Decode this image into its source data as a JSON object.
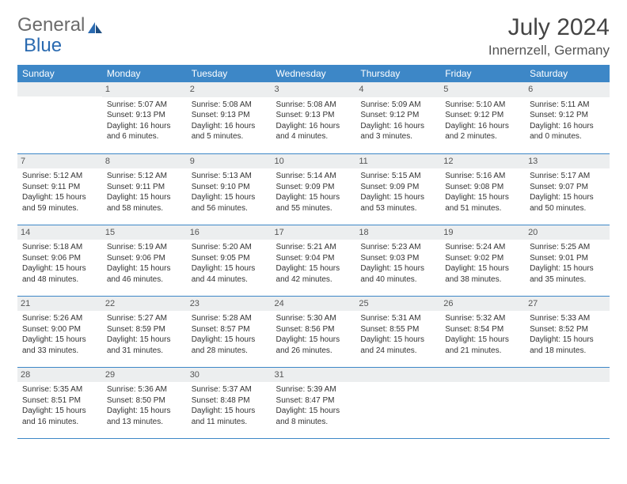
{
  "logo": {
    "text1": "General",
    "text2": "Blue"
  },
  "title": "July 2024",
  "location": "Innernzell, Germany",
  "table": {
    "header_bg": "#3d87c7",
    "header_fg": "#ffffff",
    "daybar_bg": "#eceeef",
    "border_color": "#3d87c7",
    "font_size_header": 12,
    "font_size_body": 10,
    "columns": [
      "Sunday",
      "Monday",
      "Tuesday",
      "Wednesday",
      "Thursday",
      "Friday",
      "Saturday"
    ],
    "weeks": [
      [
        null,
        {
          "n": "1",
          "sunrise": "5:07 AM",
          "sunset": "9:13 PM",
          "daylight": "16 hours and 6 minutes."
        },
        {
          "n": "2",
          "sunrise": "5:08 AM",
          "sunset": "9:13 PM",
          "daylight": "16 hours and 5 minutes."
        },
        {
          "n": "3",
          "sunrise": "5:08 AM",
          "sunset": "9:13 PM",
          "daylight": "16 hours and 4 minutes."
        },
        {
          "n": "4",
          "sunrise": "5:09 AM",
          "sunset": "9:12 PM",
          "daylight": "16 hours and 3 minutes."
        },
        {
          "n": "5",
          "sunrise": "5:10 AM",
          "sunset": "9:12 PM",
          "daylight": "16 hours and 2 minutes."
        },
        {
          "n": "6",
          "sunrise": "5:11 AM",
          "sunset": "9:12 PM",
          "daylight": "16 hours and 0 minutes."
        }
      ],
      [
        {
          "n": "7",
          "sunrise": "5:12 AM",
          "sunset": "9:11 PM",
          "daylight": "15 hours and 59 minutes."
        },
        {
          "n": "8",
          "sunrise": "5:12 AM",
          "sunset": "9:11 PM",
          "daylight": "15 hours and 58 minutes."
        },
        {
          "n": "9",
          "sunrise": "5:13 AM",
          "sunset": "9:10 PM",
          "daylight": "15 hours and 56 minutes."
        },
        {
          "n": "10",
          "sunrise": "5:14 AM",
          "sunset": "9:09 PM",
          "daylight": "15 hours and 55 minutes."
        },
        {
          "n": "11",
          "sunrise": "5:15 AM",
          "sunset": "9:09 PM",
          "daylight": "15 hours and 53 minutes."
        },
        {
          "n": "12",
          "sunrise": "5:16 AM",
          "sunset": "9:08 PM",
          "daylight": "15 hours and 51 minutes."
        },
        {
          "n": "13",
          "sunrise": "5:17 AM",
          "sunset": "9:07 PM",
          "daylight": "15 hours and 50 minutes."
        }
      ],
      [
        {
          "n": "14",
          "sunrise": "5:18 AM",
          "sunset": "9:06 PM",
          "daylight": "15 hours and 48 minutes."
        },
        {
          "n": "15",
          "sunrise": "5:19 AM",
          "sunset": "9:06 PM",
          "daylight": "15 hours and 46 minutes."
        },
        {
          "n": "16",
          "sunrise": "5:20 AM",
          "sunset": "9:05 PM",
          "daylight": "15 hours and 44 minutes."
        },
        {
          "n": "17",
          "sunrise": "5:21 AM",
          "sunset": "9:04 PM",
          "daylight": "15 hours and 42 minutes."
        },
        {
          "n": "18",
          "sunrise": "5:23 AM",
          "sunset": "9:03 PM",
          "daylight": "15 hours and 40 minutes."
        },
        {
          "n": "19",
          "sunrise": "5:24 AM",
          "sunset": "9:02 PM",
          "daylight": "15 hours and 38 minutes."
        },
        {
          "n": "20",
          "sunrise": "5:25 AM",
          "sunset": "9:01 PM",
          "daylight": "15 hours and 35 minutes."
        }
      ],
      [
        {
          "n": "21",
          "sunrise": "5:26 AM",
          "sunset": "9:00 PM",
          "daylight": "15 hours and 33 minutes."
        },
        {
          "n": "22",
          "sunrise": "5:27 AM",
          "sunset": "8:59 PM",
          "daylight": "15 hours and 31 minutes."
        },
        {
          "n": "23",
          "sunrise": "5:28 AM",
          "sunset": "8:57 PM",
          "daylight": "15 hours and 28 minutes."
        },
        {
          "n": "24",
          "sunrise": "5:30 AM",
          "sunset": "8:56 PM",
          "daylight": "15 hours and 26 minutes."
        },
        {
          "n": "25",
          "sunrise": "5:31 AM",
          "sunset": "8:55 PM",
          "daylight": "15 hours and 24 minutes."
        },
        {
          "n": "26",
          "sunrise": "5:32 AM",
          "sunset": "8:54 PM",
          "daylight": "15 hours and 21 minutes."
        },
        {
          "n": "27",
          "sunrise": "5:33 AM",
          "sunset": "8:52 PM",
          "daylight": "15 hours and 18 minutes."
        }
      ],
      [
        {
          "n": "28",
          "sunrise": "5:35 AM",
          "sunset": "8:51 PM",
          "daylight": "15 hours and 16 minutes."
        },
        {
          "n": "29",
          "sunrise": "5:36 AM",
          "sunset": "8:50 PM",
          "daylight": "15 hours and 13 minutes."
        },
        {
          "n": "30",
          "sunrise": "5:37 AM",
          "sunset": "8:48 PM",
          "daylight": "15 hours and 11 minutes."
        },
        {
          "n": "31",
          "sunrise": "5:39 AM",
          "sunset": "8:47 PM",
          "daylight": "15 hours and 8 minutes."
        },
        null,
        null,
        null
      ]
    ]
  }
}
